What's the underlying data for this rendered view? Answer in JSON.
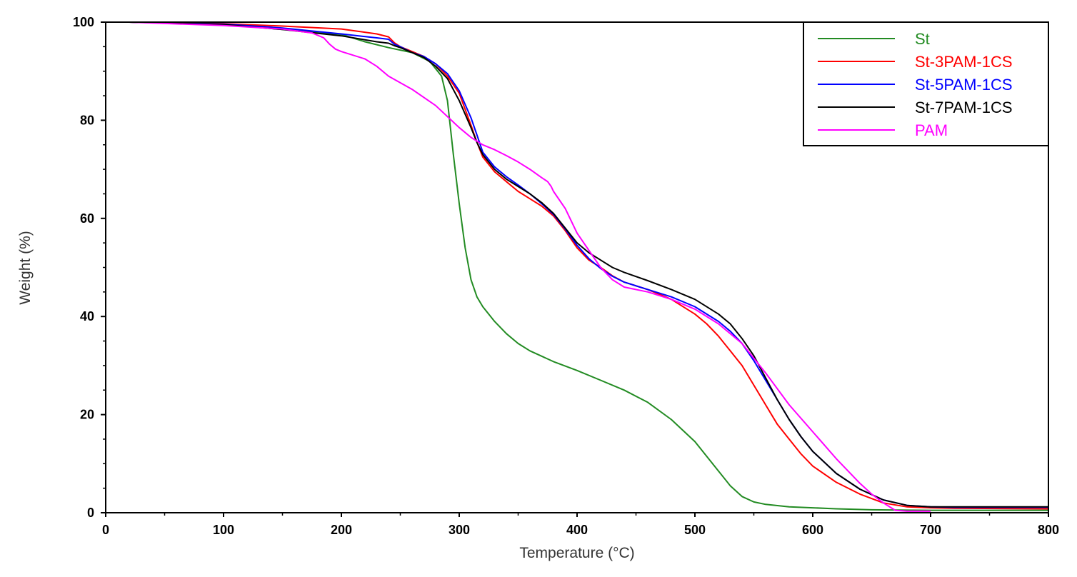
{
  "chart_data": {
    "type": "line",
    "title": "",
    "xlabel": "Temperature (°C)",
    "ylabel": "Weight (%)",
    "xlim": [
      0,
      800
    ],
    "ylim": [
      0,
      100
    ],
    "xticks": [
      0,
      100,
      200,
      300,
      400,
      500,
      600,
      700,
      800
    ],
    "yticks": [
      0,
      20,
      40,
      60,
      80,
      100
    ],
    "grid": false,
    "legend_position": "top-right",
    "series": [
      {
        "name": "St",
        "color": "#228B22",
        "points": [
          [
            20,
            100
          ],
          [
            100,
            99.6
          ],
          [
            150,
            98.5
          ],
          [
            200,
            97.5
          ],
          [
            220,
            96
          ],
          [
            240,
            94.8
          ],
          [
            260,
            93.8
          ],
          [
            275,
            92
          ],
          [
            285,
            89
          ],
          [
            290,
            84
          ],
          [
            295,
            73
          ],
          [
            300,
            63
          ],
          [
            305,
            54
          ],
          [
            310,
            47.5
          ],
          [
            315,
            44
          ],
          [
            320,
            42
          ],
          [
            330,
            39
          ],
          [
            340,
            36.5
          ],
          [
            350,
            34.5
          ],
          [
            360,
            33
          ],
          [
            380,
            30.8
          ],
          [
            400,
            29
          ],
          [
            420,
            27
          ],
          [
            440,
            25
          ],
          [
            460,
            22.5
          ],
          [
            480,
            19
          ],
          [
            500,
            14.5
          ],
          [
            510,
            11.5
          ],
          [
            520,
            8.5
          ],
          [
            530,
            5.5
          ],
          [
            540,
            3.3
          ],
          [
            550,
            2.2
          ],
          [
            560,
            1.7
          ],
          [
            580,
            1.2
          ],
          [
            600,
            1
          ],
          [
            620,
            0.8
          ],
          [
            650,
            0.6
          ],
          [
            700,
            0.5
          ],
          [
            800,
            0.5
          ]
        ]
      },
      {
        "name": "St-3PAM-1CS",
        "color": "#ff0000",
        "points": [
          [
            20,
            100
          ],
          [
            100,
            99.7
          ],
          [
            150,
            99.2
          ],
          [
            200,
            98.6
          ],
          [
            230,
            97.6
          ],
          [
            240,
            97
          ],
          [
            245,
            95.8
          ],
          [
            250,
            95
          ],
          [
            260,
            94
          ],
          [
            270,
            93
          ],
          [
            280,
            91.5
          ],
          [
            290,
            89
          ],
          [
            300,
            85.5
          ],
          [
            310,
            79
          ],
          [
            315,
            75.5
          ],
          [
            320,
            72.5
          ],
          [
            330,
            69.5
          ],
          [
            340,
            67.5
          ],
          [
            350,
            65.5
          ],
          [
            360,
            64
          ],
          [
            370,
            62.5
          ],
          [
            380,
            60.5
          ],
          [
            390,
            57.5
          ],
          [
            400,
            54
          ],
          [
            410,
            51.5
          ],
          [
            420,
            50
          ],
          [
            430,
            48.3
          ],
          [
            440,
            47
          ],
          [
            460,
            45.5
          ],
          [
            480,
            43.5
          ],
          [
            500,
            40.5
          ],
          [
            510,
            38.5
          ],
          [
            520,
            36
          ],
          [
            530,
            33
          ],
          [
            540,
            30
          ],
          [
            550,
            26
          ],
          [
            560,
            22
          ],
          [
            570,
            18
          ],
          [
            580,
            15
          ],
          [
            590,
            12
          ],
          [
            600,
            9.5
          ],
          [
            620,
            6.2
          ],
          [
            640,
            3.8
          ],
          [
            660,
            2
          ],
          [
            680,
            1.2
          ],
          [
            700,
            1
          ],
          [
            720,
            0.9
          ],
          [
            800,
            0.8
          ]
        ]
      },
      {
        "name": "St-5PAM-1CS",
        "color": "#0000ff",
        "points": [
          [
            20,
            100
          ],
          [
            100,
            99.6
          ],
          [
            150,
            98.8
          ],
          [
            200,
            97.6
          ],
          [
            230,
            96.8
          ],
          [
            240,
            96.5
          ],
          [
            245,
            95.5
          ],
          [
            250,
            95
          ],
          [
            260,
            93.8
          ],
          [
            270,
            93
          ],
          [
            280,
            91.5
          ],
          [
            290,
            89.5
          ],
          [
            300,
            86
          ],
          [
            310,
            80.5
          ],
          [
            315,
            77
          ],
          [
            320,
            73.5
          ],
          [
            330,
            70.5
          ],
          [
            340,
            68.5
          ],
          [
            350,
            66.8
          ],
          [
            360,
            65
          ],
          [
            370,
            63
          ],
          [
            380,
            60.8
          ],
          [
            390,
            57.8
          ],
          [
            400,
            54.5
          ],
          [
            410,
            51.8
          ],
          [
            420,
            49.8
          ],
          [
            430,
            48.2
          ],
          [
            440,
            47
          ],
          [
            460,
            45.5
          ],
          [
            480,
            44
          ],
          [
            500,
            42
          ],
          [
            520,
            39
          ],
          [
            530,
            37
          ],
          [
            540,
            34.5
          ],
          [
            550,
            31
          ],
          [
            560,
            27
          ],
          [
            570,
            23
          ],
          [
            580,
            19
          ],
          [
            590,
            15.5
          ],
          [
            600,
            12.5
          ],
          [
            620,
            8
          ],
          [
            640,
            4.8
          ],
          [
            660,
            2.6
          ],
          [
            680,
            1.5
          ],
          [
            700,
            1.2
          ],
          [
            720,
            1.1
          ],
          [
            800,
            1.1
          ]
        ]
      },
      {
        "name": "St-7PAM-1CS",
        "color": "#000000",
        "points": [
          [
            20,
            100
          ],
          [
            100,
            99.5
          ],
          [
            150,
            98.5
          ],
          [
            200,
            97.2
          ],
          [
            230,
            96
          ],
          [
            240,
            95.7
          ],
          [
            245,
            95.2
          ],
          [
            250,
            94.8
          ],
          [
            260,
            93.8
          ],
          [
            270,
            92.8
          ],
          [
            280,
            91
          ],
          [
            290,
            88.5
          ],
          [
            300,
            84
          ],
          [
            310,
            78.5
          ],
          [
            315,
            75.5
          ],
          [
            320,
            73
          ],
          [
            330,
            70
          ],
          [
            340,
            68
          ],
          [
            350,
            66.5
          ],
          [
            360,
            65
          ],
          [
            370,
            63.2
          ],
          [
            380,
            61
          ],
          [
            390,
            58
          ],
          [
            400,
            55
          ],
          [
            410,
            53
          ],
          [
            420,
            51.5
          ],
          [
            430,
            50
          ],
          [
            440,
            49
          ],
          [
            460,
            47.3
          ],
          [
            480,
            45.5
          ],
          [
            500,
            43.5
          ],
          [
            520,
            40.5
          ],
          [
            530,
            38.5
          ],
          [
            540,
            35.5
          ],
          [
            550,
            32
          ],
          [
            560,
            27.5
          ],
          [
            570,
            23
          ],
          [
            580,
            19
          ],
          [
            590,
            15.5
          ],
          [
            600,
            12.5
          ],
          [
            620,
            8
          ],
          [
            640,
            4.8
          ],
          [
            660,
            2.6
          ],
          [
            680,
            1.5
          ],
          [
            700,
            1.2
          ],
          [
            800,
            1.2
          ]
        ]
      },
      {
        "name": "PAM",
        "color": "#ff00ff",
        "points": [
          [
            20,
            100
          ],
          [
            100,
            99.3
          ],
          [
            150,
            98.6
          ],
          [
            175,
            97.8
          ],
          [
            185,
            96.8
          ],
          [
            190,
            95.5
          ],
          [
            195,
            94.5
          ],
          [
            200,
            94
          ],
          [
            220,
            92.5
          ],
          [
            230,
            91
          ],
          [
            240,
            89
          ],
          [
            260,
            86.3
          ],
          [
            280,
            83
          ],
          [
            300,
            78.5
          ],
          [
            310,
            76.5
          ],
          [
            320,
            75
          ],
          [
            330,
            74
          ],
          [
            340,
            72.8
          ],
          [
            350,
            71.5
          ],
          [
            360,
            70
          ],
          [
            370,
            68.3
          ],
          [
            375,
            67.5
          ],
          [
            378,
            66.5
          ],
          [
            380,
            65.5
          ],
          [
            390,
            62
          ],
          [
            400,
            57
          ],
          [
            410,
            53.5
          ],
          [
            420,
            50
          ],
          [
            430,
            47.5
          ],
          [
            440,
            46
          ],
          [
            460,
            45
          ],
          [
            480,
            43.5
          ],
          [
            500,
            41.5
          ],
          [
            520,
            38.5
          ],
          [
            540,
            34.5
          ],
          [
            560,
            28.5
          ],
          [
            580,
            22
          ],
          [
            600,
            16.5
          ],
          [
            620,
            11
          ],
          [
            640,
            6
          ],
          [
            650,
            3.8
          ],
          [
            660,
            2
          ],
          [
            670,
            0.5
          ],
          [
            680,
            0.3
          ],
          [
            700,
            0.3
          ]
        ]
      }
    ]
  }
}
